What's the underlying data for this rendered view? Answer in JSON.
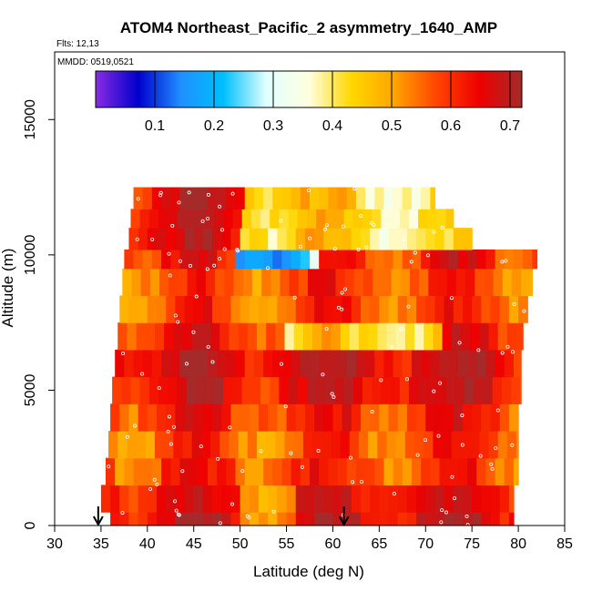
{
  "chart_data": {
    "type": "heatmap",
    "title": "ATOM4 Northeast_Pacific_2 asymmetry_1640_AMP",
    "flights_label": "Flts: 12,13",
    "dates_label": "MMDD: 0519,0521",
    "xlabel": "Latitude (deg N)",
    "ylabel": "Altitude (m)",
    "xlim": [
      30,
      85
    ],
    "ylim": [
      0,
      17500
    ],
    "x_ticks": [
      "30",
      "35",
      "40",
      "45",
      "50",
      "55",
      "60",
      "65",
      "70",
      "75",
      "80",
      "85"
    ],
    "y_ticks": [
      "0",
      "5000",
      "10000",
      "15000"
    ],
    "colorbar": {
      "range": [
        0.0,
        0.72
      ],
      "tick_labels": [
        "0.1",
        "0.2",
        "0.3",
        "0.4",
        "0.5",
        "0.6",
        "0.7"
      ],
      "tick_values": [
        0.1,
        0.2,
        0.3,
        0.4,
        0.5,
        0.6,
        0.7
      ],
      "colors": [
        "#8a2be2",
        "#0000cd",
        "#1e90ff",
        "#00bfff",
        "#e0ffff",
        "#ffffe0",
        "#ffd700",
        "#ffa500",
        "#ff4500",
        "#ee0000",
        "#a52a2a"
      ]
    },
    "arrow_latitudes": [
      34.7,
      61.2
    ],
    "profile_bands": [
      {
        "alt": [
          0,
          500
        ],
        "lat": [
          36.0,
          79.5
        ]
      },
      {
        "alt": [
          500,
          1500
        ],
        "lat": [
          35.0,
          79.5
        ]
      },
      {
        "alt": [
          1500,
          2500
        ],
        "lat": [
          35.5,
          80.0
        ]
      },
      {
        "alt": [
          2500,
          3500
        ],
        "lat": [
          35.8,
          80.0
        ]
      },
      {
        "alt": [
          3500,
          4500
        ],
        "lat": [
          36.0,
          80.0
        ]
      },
      {
        "alt": [
          4500,
          5500
        ],
        "lat": [
          36.2,
          80.3
        ]
      },
      {
        "alt": [
          5500,
          6500
        ],
        "lat": [
          36.5,
          80.3
        ]
      },
      {
        "alt": [
          6500,
          7500
        ],
        "lat": [
          36.8,
          80.5
        ]
      },
      {
        "alt": [
          7500,
          8500
        ],
        "lat": [
          37.0,
          81.0
        ]
      },
      {
        "alt": [
          8500,
          9500
        ],
        "lat": [
          37.3,
          81.5
        ]
      },
      {
        "alt": [
          9500,
          10200
        ],
        "lat": [
          37.5,
          82.0
        ]
      },
      {
        "alt": [
          10200,
          11000
        ],
        "lat": [
          38.0,
          75.0
        ]
      },
      {
        "alt": [
          11000,
          11700
        ],
        "lat": [
          38.2,
          73.0
        ]
      },
      {
        "alt": [
          11700,
          12500
        ],
        "lat": [
          38.5,
          71.0
        ]
      }
    ]
  }
}
